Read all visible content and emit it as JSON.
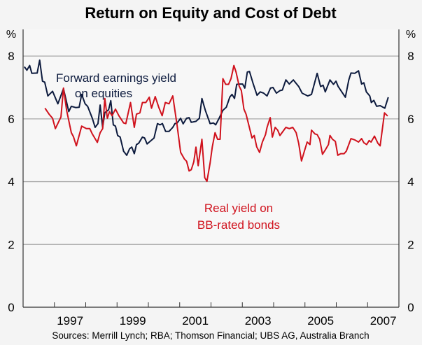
{
  "chart_data": {
    "type": "line",
    "title": "Return on Equity and Cost of Debt",
    "ylabel_left": "%",
    "ylabel_right": "%",
    "xlim": [
      1996,
      2008
    ],
    "ylim": [
      0,
      8.85
    ],
    "yticks": [
      "0",
      "2",
      "4",
      "6",
      "8"
    ],
    "ytick_values": [
      0,
      2,
      4,
      6,
      8
    ],
    "xtick_labels": [
      "1997",
      "1999",
      "2001",
      "2003",
      "2005",
      "2007"
    ],
    "grid": true,
    "source": "Sources: Merrill Lynch; RBA; Thomson Financial; UBS AG, Australia Branch",
    "colors": {
      "equity": "#0d1b3e",
      "bonds": "#d0121d",
      "grid": "#a9a9a9",
      "axis": "#333333"
    },
    "series": [
      {
        "name": "Forward earnings yield on equities",
        "label_lines": [
          "Forward earnings yield",
          "on equities"
        ],
        "x": [
          1996.04,
          1996.12,
          1996.21,
          1996.28,
          1996.45,
          1996.53,
          1996.62,
          1996.69,
          1996.79,
          1996.94,
          1997.11,
          1997.29,
          1997.46,
          1997.54,
          1997.68,
          1997.79,
          1997.87,
          1997.98,
          1998.06,
          1998.21,
          1998.3,
          1998.39,
          1998.46,
          1998.54,
          1998.61,
          1998.73,
          1998.8,
          1998.88,
          1998.95,
          1999.02,
          1999.1,
          1999.21,
          1999.31,
          1999.4,
          1999.47,
          1999.55,
          1999.62,
          1999.69,
          1999.81,
          1999.88,
          1999.96,
          2000.03,
          2000.18,
          2000.29,
          2000.37,
          2000.45,
          2000.55,
          2000.66,
          2000.78,
          2000.85,
          2000.92,
          2001.03,
          2001.11,
          2001.22,
          2001.3,
          2001.37,
          2001.52,
          2001.63,
          2001.71,
          2001.82,
          2001.97,
          2002.08,
          2002.15,
          2002.26,
          2002.38,
          2002.49,
          2002.6,
          2002.67,
          2002.75,
          2002.82,
          2002.93,
          2003.01,
          2003.08,
          2003.16,
          2003.23,
          2003.35,
          2003.47,
          2003.57,
          2003.68,
          2003.79,
          2003.9,
          2003.98,
          2004.09,
          2004.2,
          2004.28,
          2004.39,
          2004.5,
          2004.63,
          2004.8,
          2004.91,
          2005.09,
          2005.21,
          2005.39,
          2005.5,
          2005.58,
          2005.65,
          2005.8,
          2005.91,
          2005.99,
          2006.06,
          2006.29,
          2006.4,
          2006.47,
          2006.59,
          2006.71,
          2006.81,
          2006.88,
          2006.96,
          2007.07,
          2007.12,
          2007.2,
          2007.29,
          2007.4,
          2007.55,
          2007.66
        ],
        "y": [
          7.66,
          7.55,
          7.7,
          7.45,
          7.46,
          7.87,
          7.2,
          7.17,
          6.73,
          6.88,
          6.48,
          6.96,
          6.23,
          6.4,
          6.36,
          6.37,
          6.78,
          6.48,
          6.4,
          6.02,
          5.73,
          5.85,
          6.44,
          5.73,
          6.2,
          6.29,
          6.58,
          5.81,
          5.77,
          5.47,
          5.42,
          4.97,
          4.84,
          5.05,
          5.1,
          4.89,
          5.18,
          5.22,
          5.42,
          5.39,
          5.2,
          5.26,
          5.39,
          5.85,
          5.81,
          5.85,
          5.6,
          5.6,
          5.73,
          5.85,
          5.87,
          6.02,
          5.84,
          6.02,
          6.04,
          5.89,
          5.92,
          6.02,
          6.65,
          6.27,
          5.85,
          5.87,
          5.81,
          6.02,
          6.27,
          6.37,
          6.69,
          6.78,
          6.65,
          7.1,
          7.11,
          7.11,
          6.98,
          7.49,
          7.51,
          7.11,
          6.75,
          6.86,
          6.82,
          6.73,
          6.98,
          7.0,
          6.82,
          6.9,
          6.92,
          7.24,
          7.11,
          7.24,
          7.03,
          6.82,
          6.73,
          6.78,
          7.45,
          7.03,
          7.07,
          6.86,
          7.24,
          7.1,
          7.2,
          7.03,
          6.69,
          7.24,
          7.46,
          7.45,
          7.53,
          7.11,
          7.15,
          6.86,
          6.73,
          6.52,
          6.59,
          6.4,
          6.42,
          6.34,
          6.69
        ]
      },
      {
        "name": "Real yield on BB-rated bonds",
        "label_lines": [
          "Real yield on",
          "BB-rated bonds"
        ],
        "x": [
          1996.7,
          1996.83,
          1996.94,
          1997.03,
          1997.21,
          1997.29,
          1997.39,
          1997.54,
          1997.61,
          1997.7,
          1997.87,
          1998.02,
          1998.13,
          1998.21,
          1998.37,
          1998.46,
          1998.54,
          1998.61,
          1998.69,
          1998.76,
          1998.84,
          1998.95,
          1999.06,
          1999.21,
          1999.28,
          1999.43,
          1999.55,
          1999.62,
          1999.73,
          1999.81,
          1999.92,
          2000.03,
          2000.1,
          2000.22,
          2000.33,
          2000.44,
          2000.54,
          2000.66,
          2000.78,
          2000.92,
          2001.03,
          2001.15,
          2001.22,
          2001.3,
          2001.37,
          2001.45,
          2001.52,
          2001.59,
          2001.71,
          2001.8,
          2001.87,
          2001.97,
          2002.04,
          2002.13,
          2002.21,
          2002.29,
          2002.38,
          2002.47,
          2002.56,
          2002.64,
          2002.73,
          2002.8,
          2002.9,
          2002.97,
          2003.05,
          2003.12,
          2003.31,
          2003.38,
          2003.46,
          2003.55,
          2003.64,
          2003.74,
          2003.79,
          2003.89,
          2003.96,
          2004.05,
          2004.13,
          2004.2,
          2004.39,
          2004.5,
          2004.61,
          2004.72,
          2004.8,
          2004.89,
          2004.98,
          2005.07,
          2005.16,
          2005.21,
          2005.32,
          2005.39,
          2005.47,
          2005.56,
          2005.65,
          2005.75,
          2005.8,
          2005.88,
          2005.97,
          2006.05,
          2006.14,
          2006.25,
          2006.32,
          2006.47,
          2006.59,
          2006.71,
          2006.81,
          2006.88,
          2006.97,
          2007.05,
          2007.11,
          2007.22,
          2007.33,
          2007.4,
          2007.54,
          2007.64
        ],
        "y": [
          6.34,
          6.15,
          6.02,
          5.69,
          6.06,
          6.98,
          6.27,
          5.56,
          5.43,
          5.14,
          5.77,
          5.69,
          5.69,
          5.52,
          5.25,
          5.56,
          5.69,
          6.65,
          6.02,
          6.23,
          6.1,
          6.31,
          6.1,
          5.87,
          5.85,
          6.52,
          5.73,
          6.15,
          6.19,
          6.52,
          6.52,
          6.69,
          6.34,
          6.71,
          6.37,
          6.1,
          6.52,
          6.48,
          6.73,
          5.77,
          4.93,
          4.72,
          4.65,
          4.34,
          4.38,
          4.63,
          5.1,
          4.51,
          5.35,
          4.13,
          4.01,
          4.59,
          5.1,
          5.56,
          5.35,
          5.35,
          7.28,
          7.1,
          7.1,
          7.28,
          7.7,
          7.49,
          7.04,
          6.9,
          6.31,
          6.15,
          5.39,
          5.47,
          5.11,
          4.93,
          5.26,
          5.5,
          5.73,
          6.04,
          5.42,
          5.73,
          5.64,
          5.47,
          5.73,
          5.69,
          5.73,
          5.56,
          5.22,
          4.66,
          4.97,
          5.26,
          5.18,
          5.64,
          5.52,
          5.5,
          5.35,
          4.87,
          5.01,
          5.18,
          5.47,
          5.35,
          5.28,
          4.84,
          4.89,
          4.89,
          4.97,
          5.37,
          5.33,
          5.26,
          5.37,
          5.24,
          5.18,
          5.31,
          5.26,
          5.45,
          5.22,
          5.14,
          6.19,
          6.09
        ]
      }
    ]
  }
}
